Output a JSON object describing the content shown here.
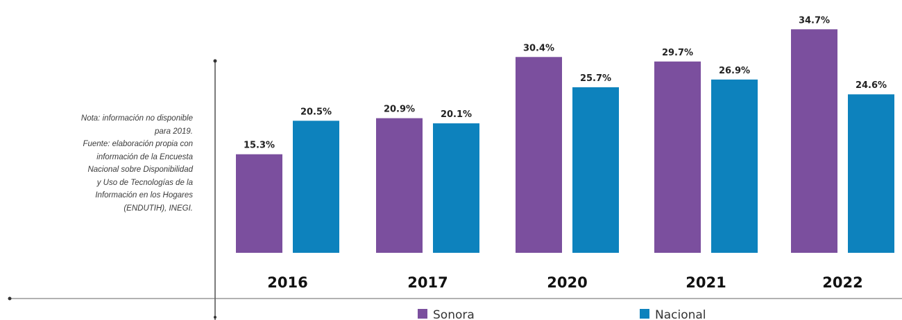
{
  "note": {
    "lines": [
      "Nota: información no disponible",
      "para 2019.",
      "Fuente: elaboración propia con",
      "información de la Encuesta",
      "Nacional sobre Disponibilidad",
      "y Uso de Tecnologías de la",
      "Información en los Hogares",
      "(ENDUTIH), INEGI."
    ]
  },
  "colors": {
    "sonora": "#7b4f9e",
    "nacional": "#0d82bd"
  },
  "chart_data": {
    "type": "bar",
    "categories": [
      "2016",
      "2017",
      "2020",
      "2021",
      "2022"
    ],
    "series": [
      {
        "name": "Sonora",
        "values": [
          15.3,
          20.9,
          30.4,
          29.7,
          34.7
        ],
        "labels": [
          "15.3%",
          "20.9%",
          "30.4%",
          "29.7%",
          "34.7%"
        ]
      },
      {
        "name": "Nacional",
        "values": [
          20.5,
          20.1,
          25.7,
          26.9,
          24.6
        ],
        "labels": [
          "20.5%",
          "20.1%",
          "25.7%",
          "26.9%",
          "24.6%"
        ]
      }
    ],
    "title": "",
    "xlabel": "",
    "ylabel": "",
    "legend": "bottom",
    "grid": false
  }
}
